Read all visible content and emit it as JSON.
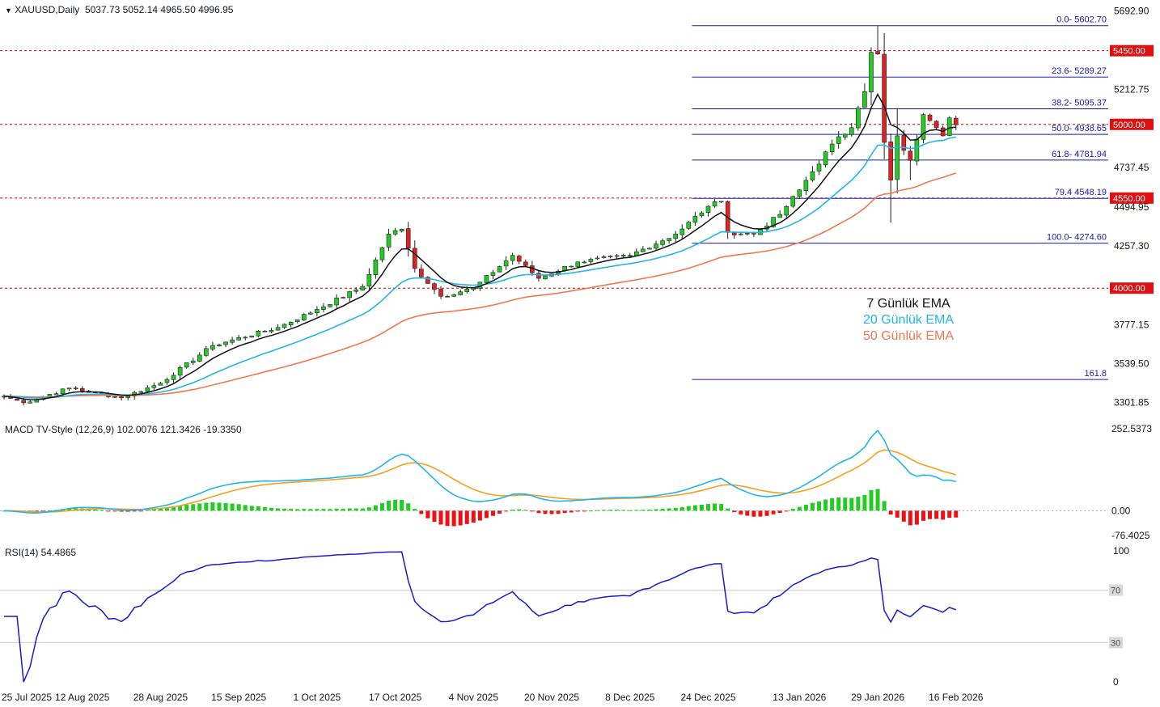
{
  "header": {
    "symbol": "XAUUSD,Daily",
    "ohlc": "5037.73 5052.14 4965.50 4996.95"
  },
  "colors": {
    "up": "#22cc22",
    "down": "#dd2222",
    "ema7": "#111111",
    "ema20": "#22b5e6",
    "ema50": "#f07850",
    "level_line": "#cc0000",
    "fib_line": "#1a1aaa",
    "macd": "#22b5e6",
    "signal": "#f5a11d",
    "hist_up": "#22cc22",
    "hist_down": "#ee1111",
    "rsi": "#1a1acc"
  },
  "chart_data": [
    {
      "type": "candlestick",
      "symbol": "XAUUSD",
      "timeframe": "Daily",
      "x_ticks": [
        "25 Jul 2025",
        "12 Aug 2025",
        "28 Aug 2025",
        "15 Sep 2025",
        "1 Oct 2025",
        "17 Oct 2025",
        "4 Nov 2025",
        "20 Nov 2025",
        "8 Dec 2025",
        "24 Dec 2025",
        "13 Jan 2026",
        "29 Jan 2026",
        "16 Feb 2026"
      ],
      "y_ticks": [
        "5692.90",
        "5212.75",
        "4737.45",
        "4494.95",
        "4257.30",
        "3777.15",
        "3539.50",
        "3301.85"
      ],
      "ylim": [
        3260,
        5720
      ],
      "close_anchors": [
        {
          "date": "25 Jul 2025",
          "close": 3340
        },
        {
          "date": "30 Jul 2025",
          "close": 3300
        },
        {
          "date": "8 Aug 2025",
          "close": 3390
        },
        {
          "date": "20 Aug 2025",
          "close": 3330
        },
        {
          "date": "28 Aug 2025",
          "close": 3420
        },
        {
          "date": "9 Sep 2025",
          "close": 3650
        },
        {
          "date": "23 Sep 2025",
          "close": 3760
        },
        {
          "date": "1 Oct 2025",
          "close": 3870
        },
        {
          "date": "10 Oct 2025",
          "close": 4010
        },
        {
          "date": "16 Oct 2025",
          "close": 4330
        },
        {
          "date": "20 Oct 2025",
          "close": 4360
        },
        {
          "date": "22 Oct 2025",
          "close": 4120
        },
        {
          "date": "28 Oct 2025",
          "close": 3950
        },
        {
          "date": "4 Nov 2025",
          "close": 4000
        },
        {
          "date": "12 Nov 2025",
          "close": 4200
        },
        {
          "date": "18 Nov 2025",
          "close": 4060
        },
        {
          "date": "26 Nov 2025",
          "close": 4160
        },
        {
          "date": "8 Dec 2025",
          "close": 4200
        },
        {
          "date": "17 Dec 2025",
          "close": 4330
        },
        {
          "date": "24 Dec 2025",
          "close": 4500
        },
        {
          "date": "26 Dec 2025",
          "close": 4530
        },
        {
          "date": "29 Dec 2025",
          "close": 4340
        },
        {
          "date": "2 Jan 2026",
          "close": 4330
        },
        {
          "date": "8 Jan 2026",
          "close": 4450
        },
        {
          "date": "13 Jan 2026",
          "close": 4600
        },
        {
          "date": "20 Jan 2026",
          "close": 4880
        },
        {
          "date": "23 Jan 2026",
          "close": 4980
        },
        {
          "date": "26 Jan 2026",
          "close": 5100
        },
        {
          "date": "27 Jan 2026",
          "close": 5200
        },
        {
          "date": "28 Jan 2026",
          "close": 5440
        },
        {
          "date": "29 Jan 2026",
          "close": 5430
        },
        {
          "date": "30 Jan 2026",
          "close": 4890
        },
        {
          "date": "2 Feb 2026",
          "close": 4660
        },
        {
          "date": "3 Feb 2026",
          "close": 4930
        },
        {
          "date": "5 Feb 2026",
          "close": 4780
        },
        {
          "date": "9 Feb 2026",
          "close": 5060
        },
        {
          "date": "12 Feb 2026",
          "close": 4930
        },
        {
          "date": "13 Feb 2026",
          "close": 5040
        },
        {
          "date": "16 Feb 2026",
          "close": 4996.95
        }
      ],
      "last_bar": {
        "open": 5037.73,
        "high": 5052.14,
        "low": 4965.5,
        "close": 4996.95
      },
      "horizontal_levels": [
        {
          "label": "5450.00",
          "value": 5450
        },
        {
          "label": "5000.00",
          "value": 5000
        },
        {
          "label": "4550.00",
          "value": 4550
        },
        {
          "label": "4000.00",
          "value": 4000
        }
      ],
      "fibonacci": [
        {
          "label": "0.0- 5602.70",
          "value": 5602.7
        },
        {
          "label": "23.6- 5289.27",
          "value": 5289.27
        },
        {
          "label": "38.2- 5095.37",
          "value": 5095.37
        },
        {
          "label": "50.0- 4938.65",
          "value": 4938.65
        },
        {
          "label": "61.8- 4781.94",
          "value": 4781.94
        },
        {
          "label": "79.4 4548.19",
          "value": 4548.19
        },
        {
          "label": "100.0- 4274.60",
          "value": 4274.6
        },
        {
          "label": "161.8",
          "value": 3442
        }
      ],
      "legend": [
        {
          "name": "7 Günlük EMA",
          "color": "#111111"
        },
        {
          "name": "20 Günlük EMA",
          "color": "#22b5e6"
        },
        {
          "name": "50 Günlük EMA",
          "color": "#f07850"
        }
      ]
    },
    {
      "type": "line",
      "title": "MACD TV-Style (12,26,9) 102.0076 121.3426 -19.3350",
      "y_ticks": [
        "252.5373",
        "0.00",
        "-76.4025"
      ],
      "ylim": [
        -76.4025,
        252.5373
      ],
      "series": [
        {
          "name": "MACD",
          "values_at_anchors": "computed from price closes (12,26 EMA)"
        },
        {
          "name": "Signal",
          "values_at_anchors": "9 EMA of MACD"
        }
      ]
    },
    {
      "type": "line",
      "title": "RSI(14) 54.4865",
      "y_ticks": [
        "100",
        "70",
        "30",
        "0"
      ],
      "ylim": [
        0,
        100
      ],
      "guide_levels": [
        70,
        30
      ]
    }
  ]
}
